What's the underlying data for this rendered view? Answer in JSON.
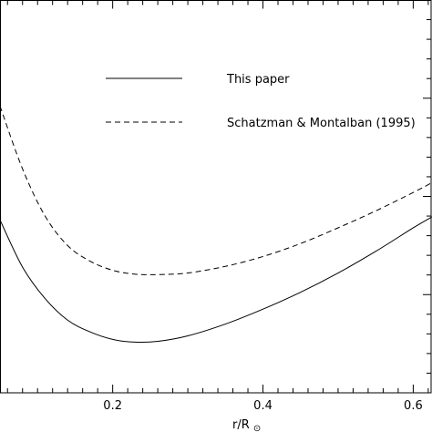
{
  "chart_data": {
    "type": "line",
    "title": "",
    "xlabel": "r/R",
    "xlabel_subscript": "⊙",
    "ylabel": "",
    "xlim": [
      0.05,
      0.625
    ],
    "ylim": [
      0,
      1
    ],
    "x_ticks": [
      0.2,
      0.4,
      0.6
    ],
    "x_tick_labels": [
      "0.2",
      "0.4",
      "0.6"
    ],
    "grid": false,
    "legend_position": "top-right",
    "series": [
      {
        "name": "This paper",
        "style": "solid",
        "color": "#000000",
        "x": [
          0.05,
          0.08,
          0.11,
          0.14,
          0.17,
          0.2,
          0.23,
          0.26,
          0.3,
          0.35,
          0.4,
          0.45,
          0.5,
          0.55,
          0.6,
          0.625
        ],
        "y": [
          0.44,
          0.32,
          0.24,
          0.185,
          0.155,
          0.136,
          0.129,
          0.131,
          0.145,
          0.175,
          0.213,
          0.256,
          0.305,
          0.36,
          0.42,
          0.448
        ]
      },
      {
        "name": "Schatzman & Montalban (1995)",
        "style": "dashed",
        "color": "#000000",
        "x": [
          0.05,
          0.08,
          0.11,
          0.14,
          0.17,
          0.2,
          0.23,
          0.26,
          0.3,
          0.35,
          0.4,
          0.45,
          0.5,
          0.55,
          0.6,
          0.625
        ],
        "y": [
          0.73,
          0.57,
          0.45,
          0.375,
          0.335,
          0.312,
          0.302,
          0.301,
          0.305,
          0.322,
          0.347,
          0.38,
          0.42,
          0.463,
          0.51,
          0.535
        ]
      }
    ]
  }
}
